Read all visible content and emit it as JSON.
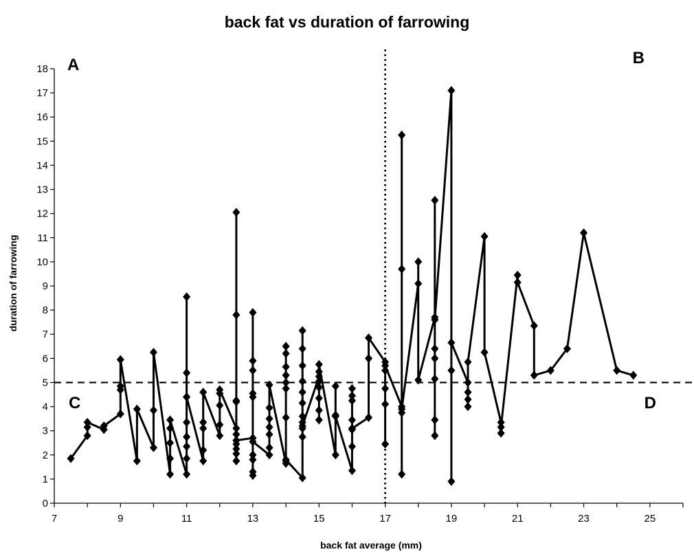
{
  "chart_data": {
    "type": "line",
    "title": "back fat vs duration of farrowing",
    "xlabel": "back fat average (mm)",
    "ylabel": "duration of farrowing",
    "xlim": [
      7,
      26
    ],
    "ylim": [
      0,
      18
    ],
    "x_ticks": [
      7,
      9,
      11,
      13,
      15,
      17,
      19,
      21,
      23,
      25
    ],
    "y_ticks": [
      0,
      1,
      2,
      3,
      4,
      5,
      6,
      7,
      8,
      9,
      10,
      11,
      12,
      13,
      14,
      15,
      16,
      17,
      18
    ],
    "grid": false,
    "legend": "none",
    "reference_lines": [
      {
        "orientation": "horizontal",
        "value": 5,
        "style": "dashed"
      },
      {
        "orientation": "vertical",
        "value": 17,
        "style": "dotted"
      }
    ],
    "quadrant_labels": [
      {
        "text": "A",
        "position": "top-left"
      },
      {
        "text": "B",
        "position": "top-right"
      },
      {
        "text": "C",
        "position": "bottom-left"
      },
      {
        "text": "D",
        "position": "bottom-right"
      }
    ],
    "series": [
      {
        "color": "#000000",
        "marker": "diamond",
        "points": [
          [
            7.5,
            1.85
          ],
          [
            8,
            2.8
          ],
          [
            8,
            3.15
          ],
          [
            8,
            3.35
          ],
          [
            8.5,
            3.05
          ],
          [
            8.5,
            3.2
          ],
          [
            9,
            3.7
          ],
          [
            9,
            4.7
          ],
          [
            9,
            4.85
          ],
          [
            9,
            5.95
          ],
          [
            9.5,
            1.75
          ],
          [
            9.5,
            3.9
          ],
          [
            10,
            2.3
          ],
          [
            10,
            3.85
          ],
          [
            10,
            6.25
          ],
          [
            10.5,
            1.2
          ],
          [
            10.5,
            1.85
          ],
          [
            10.5,
            2.5
          ],
          [
            10.5,
            3.1
          ],
          [
            10.5,
            3.45
          ],
          [
            11,
            1.2
          ],
          [
            11,
            1.85
          ],
          [
            11,
            2.35
          ],
          [
            11,
            2.75
          ],
          [
            11,
            3.35
          ],
          [
            11,
            4.4
          ],
          [
            11,
            5.4
          ],
          [
            11,
            8.55
          ],
          [
            11,
            4.4
          ],
          [
            11.5,
            1.75
          ],
          [
            11.5,
            2.2
          ],
          [
            11.5,
            3.1
          ],
          [
            11.5,
            3.35
          ],
          [
            11.5,
            4.6
          ],
          [
            12,
            2.8
          ],
          [
            12,
            3.25
          ],
          [
            12,
            4.05
          ],
          [
            12,
            4.55
          ],
          [
            12,
            4.7
          ],
          [
            12.5,
            3.1
          ],
          [
            12.5,
            1.75
          ],
          [
            12.5,
            2.05
          ],
          [
            12.5,
            2.25
          ],
          [
            12.5,
            2.45
          ],
          [
            12.5,
            2.6
          ],
          [
            12.5,
            2.85
          ],
          [
            12.5,
            4.2
          ],
          [
            12.5,
            7.8
          ],
          [
            12.5,
            12.05
          ],
          [
            12.5,
            4.25
          ],
          [
            12.5,
            2.6
          ],
          [
            13,
            2.7
          ],
          [
            13,
            1.15
          ],
          [
            13,
            1.3
          ],
          [
            13,
            1.8
          ],
          [
            13,
            2.0
          ],
          [
            13,
            4.4
          ],
          [
            13,
            4.55
          ],
          [
            13,
            5.5
          ],
          [
            13,
            5.9
          ],
          [
            13,
            7.9
          ],
          [
            13,
            2.55
          ],
          [
            13.5,
            2.0
          ],
          [
            13.5,
            2.3
          ],
          [
            13.5,
            2.85
          ],
          [
            13.5,
            3.15
          ],
          [
            13.5,
            3.5
          ],
          [
            13.5,
            3.95
          ],
          [
            13.5,
            4.9
          ],
          [
            14,
            1.65
          ],
          [
            14,
            1.75
          ],
          [
            14,
            3.55
          ],
          [
            14,
            4.75
          ],
          [
            14,
            5.0
          ],
          [
            14,
            5.3
          ],
          [
            14,
            5.65
          ],
          [
            14,
            6.2
          ],
          [
            14,
            6.5
          ],
          [
            14,
            1.8
          ],
          [
            14.5,
            1.05
          ],
          [
            14.5,
            2.75
          ],
          [
            14.5,
            3.1
          ],
          [
            14.5,
            3.35
          ],
          [
            14.5,
            3.6
          ],
          [
            14.5,
            4.15
          ],
          [
            14.5,
            4.6
          ],
          [
            14.5,
            5.05
          ],
          [
            14.5,
            5.7
          ],
          [
            14.5,
            6.4
          ],
          [
            14.5,
            7.15
          ],
          [
            14.5,
            3.2
          ],
          [
            15,
            5.25
          ],
          [
            15,
            3.45
          ],
          [
            15,
            3.85
          ],
          [
            15,
            4.35
          ],
          [
            15,
            4.8
          ],
          [
            15,
            5.05
          ],
          [
            15,
            5.45
          ],
          [
            15,
            5.75
          ],
          [
            15.5,
            2.0
          ],
          [
            15.5,
            3.65
          ],
          [
            15.5,
            4.85
          ],
          [
            15.5,
            3.6
          ],
          [
            16,
            1.35
          ],
          [
            16,
            2.35
          ],
          [
            16,
            3.05
          ],
          [
            16,
            3.45
          ],
          [
            16,
            4.25
          ],
          [
            16,
            4.45
          ],
          [
            16,
            4.75
          ],
          [
            16,
            3.1
          ],
          [
            16.5,
            3.55
          ],
          [
            16.5,
            6.0
          ],
          [
            16.5,
            6.85
          ],
          [
            17,
            5.85
          ],
          [
            17,
            2.45
          ],
          [
            17,
            4.1
          ],
          [
            17,
            4.75
          ],
          [
            17,
            5.5
          ],
          [
            17,
            5.7
          ],
          [
            17.5,
            4.0
          ],
          [
            17.5,
            1.2
          ],
          [
            17.5,
            3.75
          ],
          [
            17.5,
            9.7
          ],
          [
            17.5,
            15.25
          ],
          [
            17.5,
            3.9
          ],
          [
            18,
            9.1
          ],
          [
            18,
            10.0
          ],
          [
            18,
            5.1
          ],
          [
            18.5,
            7.7
          ],
          [
            18.5,
            2.8
          ],
          [
            18.5,
            3.45
          ],
          [
            18.5,
            5.15
          ],
          [
            18.5,
            6.0
          ],
          [
            18.5,
            6.4
          ],
          [
            18.5,
            12.55
          ],
          [
            18.5,
            7.6
          ],
          [
            19,
            17.1
          ],
          [
            19,
            0.9
          ],
          [
            19,
            5.5
          ],
          [
            19,
            6.65
          ],
          [
            19.5,
            5.0
          ],
          [
            19.5,
            4.0
          ],
          [
            19.5,
            4.3
          ],
          [
            19.5,
            4.6
          ],
          [
            19.5,
            5.85
          ],
          [
            20,
            11.05
          ],
          [
            20,
            6.25
          ],
          [
            20.5,
            3.35
          ],
          [
            20.5,
            2.9
          ],
          [
            20.5,
            3.15
          ],
          [
            21,
            9.45
          ],
          [
            21,
            9.15
          ],
          [
            21.5,
            7.35
          ],
          [
            21.5,
            5.3
          ],
          [
            22,
            5.5
          ],
          [
            22.5,
            6.4
          ],
          [
            23,
            11.2
          ],
          [
            24,
            5.5
          ],
          [
            24.5,
            5.3
          ]
        ]
      }
    ]
  }
}
